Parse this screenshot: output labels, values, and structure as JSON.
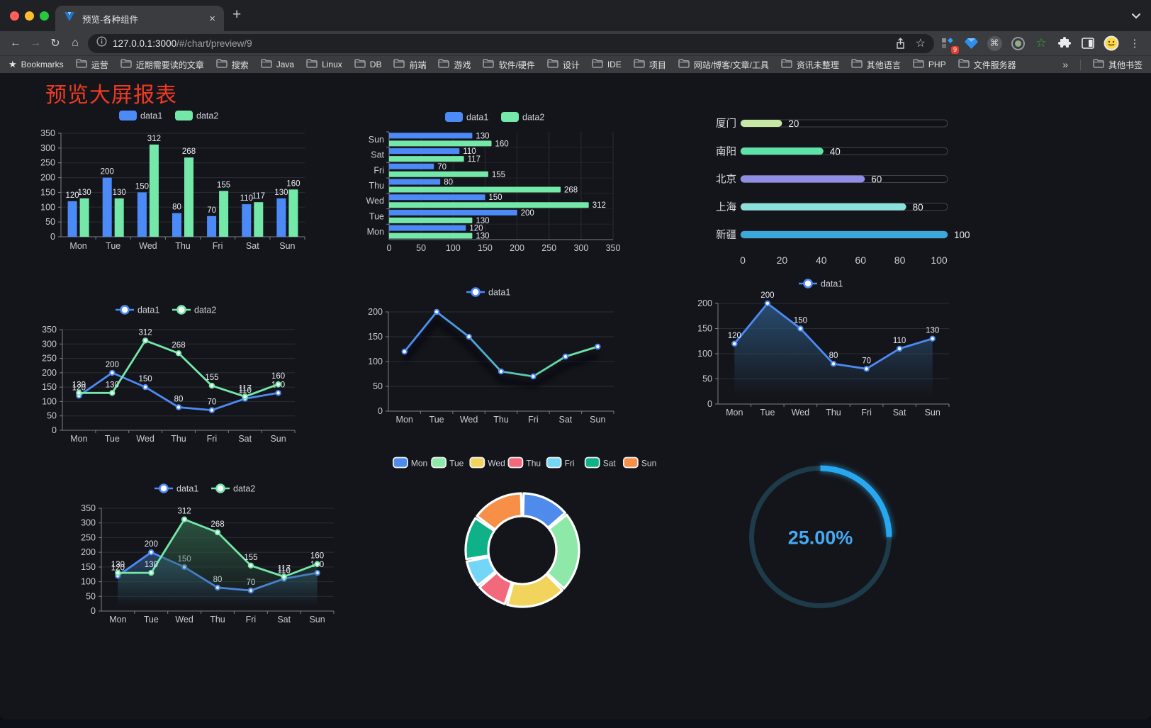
{
  "browser": {
    "tab": {
      "title": "预览-各种组件",
      "close_glyph": "×",
      "new_tab_glyph": "+"
    },
    "url": {
      "host": "127.0.0.1:3000",
      "path": "/#/chart/preview/9"
    },
    "nav": {
      "back": "←",
      "forward": "→",
      "reload": "↻",
      "home": "⌂"
    },
    "extension_badge": "9",
    "bookmarks_label": "Bookmarks",
    "bookmarks": [
      "运营",
      "近期需要读的文章",
      "搜索",
      "Java",
      "Linux",
      "DB",
      "前端",
      "游戏",
      "软件/硬件",
      "设计",
      "IDE",
      "项目",
      "网站/博客/文章/工具",
      "资讯未整理",
      "其他语言",
      "PHP",
      "文件服务器"
    ],
    "bookmarks_overflow": "»",
    "other_bookmarks": "其他书签"
  },
  "page": {
    "title": "预览大屏报表",
    "title_color": "#ee3a24"
  },
  "chart_style": {
    "axis_line": "#7a7f89",
    "grid": "#2a2d35",
    "tick_text": "#c7ccd4",
    "value_text": "#e9ecf1",
    "legend_text": "#ccd1d9"
  },
  "chart_data": [
    {
      "id": "barv",
      "type": "bar",
      "title": "",
      "categories": [
        "Mon",
        "Tue",
        "Wed",
        "Thu",
        "Fri",
        "Sat",
        "Sun"
      ],
      "series": [
        {
          "name": "data1",
          "color": "#4c8af8",
          "values": [
            120,
            200,
            150,
            80,
            70,
            110,
            130
          ]
        },
        {
          "name": "data2",
          "color": "#73e8a9",
          "values": [
            130,
            130,
            312,
            268,
            155,
            117,
            160
          ]
        }
      ],
      "ylim": [
        0,
        350
      ],
      "yticks": [
        0,
        50,
        100,
        150,
        200,
        250,
        300,
        350
      ],
      "legend_position": "top",
      "value_labels": true
    },
    {
      "id": "barh",
      "type": "bar-horizontal",
      "title": "",
      "categories": [
        "Mon",
        "Tue",
        "Wed",
        "Thu",
        "Fri",
        "Sat",
        "Sun"
      ],
      "display_order_top_to_bottom": [
        "Sun",
        "Sat",
        "Fri",
        "Thu",
        "Wed",
        "Tue",
        "Mon"
      ],
      "series": [
        {
          "name": "data1",
          "color": "#4c8af8",
          "values": [
            120,
            200,
            150,
            80,
            70,
            110,
            130
          ]
        },
        {
          "name": "data2",
          "color": "#73e8a9",
          "values": [
            130,
            130,
            312,
            268,
            155,
            117,
            160
          ]
        }
      ],
      "xlim": [
        0,
        350
      ],
      "xticks": [
        0,
        50,
        100,
        150,
        200,
        250,
        300,
        350
      ],
      "legend_position": "top",
      "value_labels": true
    },
    {
      "id": "progress",
      "type": "progress",
      "rows": [
        {
          "label": "厦门",
          "value": 20,
          "color": "#c6e8a2"
        },
        {
          "label": "南阳",
          "value": 40,
          "color": "#5de3a6"
        },
        {
          "label": "北京",
          "value": 60,
          "color": "#8f8ee4"
        },
        {
          "label": "上海",
          "value": 80,
          "color": "#8be0dc"
        },
        {
          "label": "新疆",
          "value": 100,
          "color": "#3ba8dc"
        }
      ],
      "xlim": [
        0,
        100
      ],
      "xticks": [
        0,
        20,
        40,
        60,
        80,
        100
      ]
    },
    {
      "id": "lined",
      "type": "line",
      "title": "",
      "categories": [
        "Mon",
        "Tue",
        "Wed",
        "Thu",
        "Fri",
        "Sat",
        "Sun"
      ],
      "series": [
        {
          "name": "data1",
          "color": "#4c8af8",
          "values": [
            120,
            200,
            150,
            80,
            70,
            110,
            130
          ]
        },
        {
          "name": "data2",
          "color": "#73e8a9",
          "values": [
            130,
            130,
            312,
            268,
            155,
            117,
            160
          ]
        }
      ],
      "ylim": [
        0,
        350
      ],
      "yticks": [
        0,
        50,
        100,
        150,
        200,
        250,
        300,
        350
      ],
      "legend_position": "top",
      "value_labels": true
    },
    {
      "id": "lineg",
      "type": "line",
      "title": "",
      "categories": [
        "Mon",
        "Tue",
        "Wed",
        "Thu",
        "Fri",
        "Sat",
        "Sun"
      ],
      "series": [
        {
          "name": "data1",
          "gradient": [
            "#4c8af8",
            "#4c9fe2",
            "#5fd3a8",
            "#73e8a9"
          ],
          "marker_color": "#4c8af8",
          "values": [
            120,
            200,
            150,
            80,
            70,
            110,
            130
          ],
          "shadow": true
        }
      ],
      "ylim": [
        0,
        200
      ],
      "yticks": [
        0,
        50,
        100,
        150,
        200
      ],
      "legend_position": "top",
      "value_labels": false
    },
    {
      "id": "linea",
      "type": "line",
      "title": "",
      "categories": [
        "Mon",
        "Tue",
        "Wed",
        "Thu",
        "Fri",
        "Sat",
        "Sun"
      ],
      "series": [
        {
          "name": "data1",
          "color": "#4c8af8",
          "area": true,
          "area_color": "#2c567e",
          "values": [
            120,
            200,
            150,
            80,
            70,
            110,
            130
          ]
        }
      ],
      "ylim": [
        0,
        200
      ],
      "yticks": [
        0,
        50,
        100,
        150,
        200
      ],
      "legend_position": "top",
      "value_labels": true
    },
    {
      "id": "lineda",
      "type": "line",
      "title": "",
      "categories": [
        "Mon",
        "Tue",
        "Wed",
        "Thu",
        "Fri",
        "Sat",
        "Sun"
      ],
      "series": [
        {
          "name": "data1",
          "color": "#4c8af8",
          "area": true,
          "area_color": "#2b4e74",
          "values": [
            120,
            200,
            150,
            80,
            70,
            110,
            130
          ]
        },
        {
          "name": "data2",
          "color": "#73e8a9",
          "area": true,
          "area_color": "#2f5e47",
          "values": [
            130,
            130,
            312,
            268,
            155,
            117,
            160
          ]
        }
      ],
      "ylim": [
        0,
        350
      ],
      "yticks": [
        0,
        50,
        100,
        150,
        200,
        250,
        300,
        350
      ],
      "legend_position": "top",
      "value_labels": true
    },
    {
      "id": "donut",
      "type": "pie",
      "title": "",
      "items": [
        {
          "label": "Mon",
          "value": 120,
          "color": "#4f8bea"
        },
        {
          "label": "Tue",
          "value": 200,
          "color": "#8ee8a8"
        },
        {
          "label": "Wed",
          "value": 150,
          "color": "#f2d45c"
        },
        {
          "label": "Thu",
          "value": 80,
          "color": "#f2697c"
        },
        {
          "label": "Fri",
          "value": 70,
          "color": "#74d6f7"
        },
        {
          "label": "Sat",
          "value": 110,
          "color": "#0fb188"
        },
        {
          "label": "Sun",
          "value": 130,
          "color": "#f79046"
        }
      ],
      "inner_radius_ratio": 0.6,
      "border_color": "#ffffff",
      "legend_position": "top"
    },
    {
      "id": "gauge",
      "type": "gauge",
      "value": 25,
      "display": "25.00%",
      "arc_color": "#29a8f2",
      "track_color": "#1e3b49",
      "text_color": "#45aaf2",
      "start": "top",
      "direction": "clockwise"
    }
  ]
}
